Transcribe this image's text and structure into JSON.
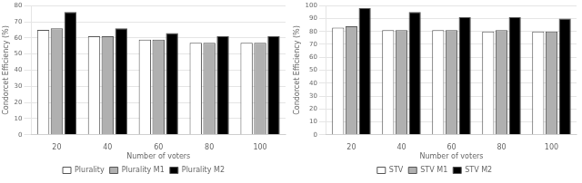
{
  "chart_data": [
    {
      "type": "bar",
      "xlabel": "Number of voters",
      "ylabel": "Condorcet Efficiency (%)",
      "categories": [
        "20",
        "40",
        "60",
        "80",
        "100"
      ],
      "series": [
        {
          "name": "Plurality",
          "color": "#ffffff",
          "values": [
            65,
            61,
            59,
            57,
            57
          ]
        },
        {
          "name": "Plurality M1",
          "color": "#b0b0b0",
          "values": [
            66,
            61,
            59,
            57,
            57
          ]
        },
        {
          "name": "Plurality M2",
          "color": "#000000",
          "values": [
            76,
            66,
            63,
            61,
            61
          ]
        }
      ],
      "ylim": [
        0,
        80
      ],
      "yticks": [
        0,
        10,
        20,
        30,
        40,
        50,
        60,
        70,
        80
      ],
      "grid": true,
      "legend": "bottom"
    },
    {
      "type": "bar",
      "xlabel": "Number of voters",
      "ylabel": "Condorcet Efficiency (%)",
      "categories": [
        "20",
        "40",
        "60",
        "80",
        "100"
      ],
      "series": [
        {
          "name": "STV",
          "color": "#ffffff",
          "values": [
            83,
            81,
            81,
            80,
            80
          ]
        },
        {
          "name": "STV M1",
          "color": "#b0b0b0",
          "values": [
            84,
            81,
            81,
            81,
            80
          ]
        },
        {
          "name": "STV M2",
          "color": "#000000",
          "values": [
            98,
            95,
            91,
            91,
            90
          ]
        }
      ],
      "ylim": [
        0,
        100
      ],
      "yticks": [
        0,
        10,
        20,
        30,
        40,
        50,
        60,
        70,
        80,
        90,
        100
      ],
      "grid": true,
      "legend": "bottom"
    }
  ]
}
